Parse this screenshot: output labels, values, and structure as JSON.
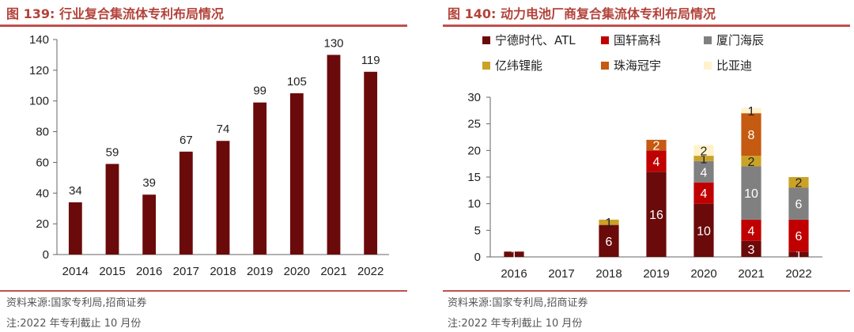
{
  "left": {
    "title_prefix": "图 139:",
    "title_text": "行业复合集流体专利布局情况",
    "source": "资料来源:国家专利局,招商证券",
    "note": "注:2022 年专利截止 10 月份"
  },
  "right": {
    "title_prefix": "图 140:",
    "title_text": "动力电池厂商复合集流体专利布局情况",
    "source": "资料来源:国家专利局,招商证券",
    "note": "注:2022 年专利截止 10 月份"
  },
  "chart_data": [
    {
      "type": "bar",
      "title": "行业复合集流体专利布局情况",
      "categories": [
        "2014",
        "2015",
        "2016",
        "2017",
        "2018",
        "2019",
        "2020",
        "2021",
        "2022"
      ],
      "values": [
        34,
        59,
        39,
        67,
        74,
        99,
        105,
        130,
        119
      ],
      "ylim": [
        0,
        140
      ],
      "yticks": [
        0,
        20,
        40,
        60,
        80,
        100,
        120,
        140
      ],
      "color": "#6b0a0a"
    },
    {
      "type": "bar",
      "stacked": true,
      "title": "动力电池厂商复合集流体专利布局情况",
      "categories": [
        "2016",
        "2017",
        "2018",
        "2019",
        "2020",
        "2021",
        "2022"
      ],
      "ylim": [
        0,
        30
      ],
      "yticks": [
        0,
        5,
        10,
        15,
        20,
        25,
        30
      ],
      "series": [
        {
          "name": "宁德时代、ATL",
          "color": "#6b0a0a",
          "values": [
            1,
            0,
            6,
            16,
            10,
            3,
            1
          ]
        },
        {
          "name": "国轩高科",
          "color": "#c00000",
          "values": [
            0,
            0,
            0,
            4,
            4,
            4,
            6
          ]
        },
        {
          "name": "厦门海辰",
          "color": "#808080",
          "values": [
            0,
            0,
            0,
            0,
            4,
            10,
            6
          ]
        },
        {
          "name": "亿纬锂能",
          "color": "#c9a227",
          "values": [
            0,
            0,
            1,
            0,
            1,
            2,
            2
          ]
        },
        {
          "name": "珠海冠宇",
          "color": "#c55a11",
          "values": [
            0,
            0,
            0,
            2,
            0,
            8,
            0
          ]
        },
        {
          "name": "比亚迪",
          "color": "#fff2cc",
          "values": [
            0,
            0,
            0,
            0,
            2,
            1,
            0
          ]
        }
      ]
    }
  ]
}
